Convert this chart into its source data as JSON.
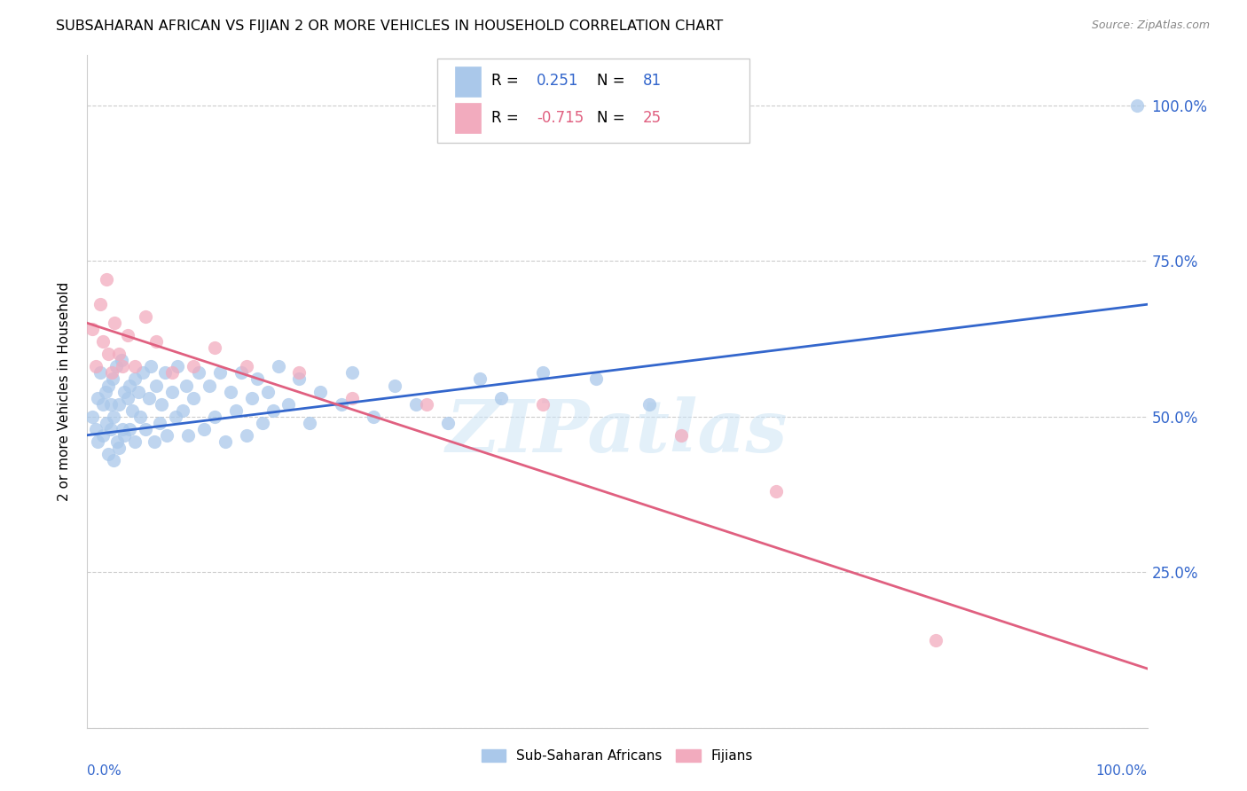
{
  "title": "SUBSAHARAN AFRICAN VS FIJIAN 2 OR MORE VEHICLES IN HOUSEHOLD CORRELATION CHART",
  "source": "Source: ZipAtlas.com",
  "ylabel": "2 or more Vehicles in Household",
  "ytick_values": [
    0.0,
    0.25,
    0.5,
    0.75,
    1.0
  ],
  "ytick_labels": [
    "",
    "25.0%",
    "50.0%",
    "75.0%",
    "100.0%"
  ],
  "xlim": [
    0.0,
    1.0
  ],
  "ylim": [
    0.0,
    1.08
  ],
  "blue_color": "#aac8ea",
  "pink_color": "#f2abbe",
  "blue_line_color": "#3366cc",
  "pink_line_color": "#e06080",
  "watermark": "ZIPatlas",
  "legend_r_blue": "0.251",
  "legend_n_blue": "81",
  "legend_r_pink": "-0.715",
  "legend_n_pink": "25",
  "blue_scatter_x": [
    0.005,
    0.008,
    0.01,
    0.01,
    0.012,
    0.015,
    0.015,
    0.017,
    0.018,
    0.02,
    0.02,
    0.022,
    0.022,
    0.024,
    0.025,
    0.025,
    0.027,
    0.028,
    0.03,
    0.03,
    0.032,
    0.033,
    0.035,
    0.035,
    0.038,
    0.04,
    0.04,
    0.042,
    0.045,
    0.045,
    0.048,
    0.05,
    0.052,
    0.055,
    0.058,
    0.06,
    0.063,
    0.065,
    0.068,
    0.07,
    0.073,
    0.075,
    0.08,
    0.083,
    0.085,
    0.09,
    0.093,
    0.095,
    0.1,
    0.105,
    0.11,
    0.115,
    0.12,
    0.125,
    0.13,
    0.135,
    0.14,
    0.145,
    0.15,
    0.155,
    0.16,
    0.165,
    0.17,
    0.175,
    0.18,
    0.19,
    0.2,
    0.21,
    0.22,
    0.24,
    0.25,
    0.27,
    0.29,
    0.31,
    0.34,
    0.37,
    0.39,
    0.43,
    0.48,
    0.53,
    0.99
  ],
  "blue_scatter_y": [
    0.5,
    0.48,
    0.53,
    0.46,
    0.57,
    0.52,
    0.47,
    0.54,
    0.49,
    0.55,
    0.44,
    0.52,
    0.48,
    0.56,
    0.5,
    0.43,
    0.58,
    0.46,
    0.52,
    0.45,
    0.59,
    0.48,
    0.54,
    0.47,
    0.53,
    0.55,
    0.48,
    0.51,
    0.56,
    0.46,
    0.54,
    0.5,
    0.57,
    0.48,
    0.53,
    0.58,
    0.46,
    0.55,
    0.49,
    0.52,
    0.57,
    0.47,
    0.54,
    0.5,
    0.58,
    0.51,
    0.55,
    0.47,
    0.53,
    0.57,
    0.48,
    0.55,
    0.5,
    0.57,
    0.46,
    0.54,
    0.51,
    0.57,
    0.47,
    0.53,
    0.56,
    0.49,
    0.54,
    0.51,
    0.58,
    0.52,
    0.56,
    0.49,
    0.54,
    0.52,
    0.57,
    0.5,
    0.55,
    0.52,
    0.49,
    0.56,
    0.53,
    0.57,
    0.56,
    0.52,
    1.0
  ],
  "pink_scatter_x": [
    0.005,
    0.008,
    0.012,
    0.015,
    0.018,
    0.02,
    0.023,
    0.026,
    0.03,
    0.033,
    0.038,
    0.045,
    0.055,
    0.065,
    0.08,
    0.1,
    0.12,
    0.15,
    0.2,
    0.25,
    0.32,
    0.43,
    0.56,
    0.65,
    0.8
  ],
  "pink_scatter_y": [
    0.64,
    0.58,
    0.68,
    0.62,
    0.72,
    0.6,
    0.57,
    0.65,
    0.6,
    0.58,
    0.63,
    0.58,
    0.66,
    0.62,
    0.57,
    0.58,
    0.61,
    0.58,
    0.57,
    0.53,
    0.52,
    0.52,
    0.47,
    0.38,
    0.14
  ],
  "blue_line_x": [
    0.0,
    1.0
  ],
  "blue_line_y": [
    0.47,
    0.68
  ],
  "pink_line_x": [
    0.0,
    1.0
  ],
  "pink_line_y": [
    0.65,
    0.095
  ],
  "grid_color": "#cccccc",
  "bg_color": "#ffffff"
}
